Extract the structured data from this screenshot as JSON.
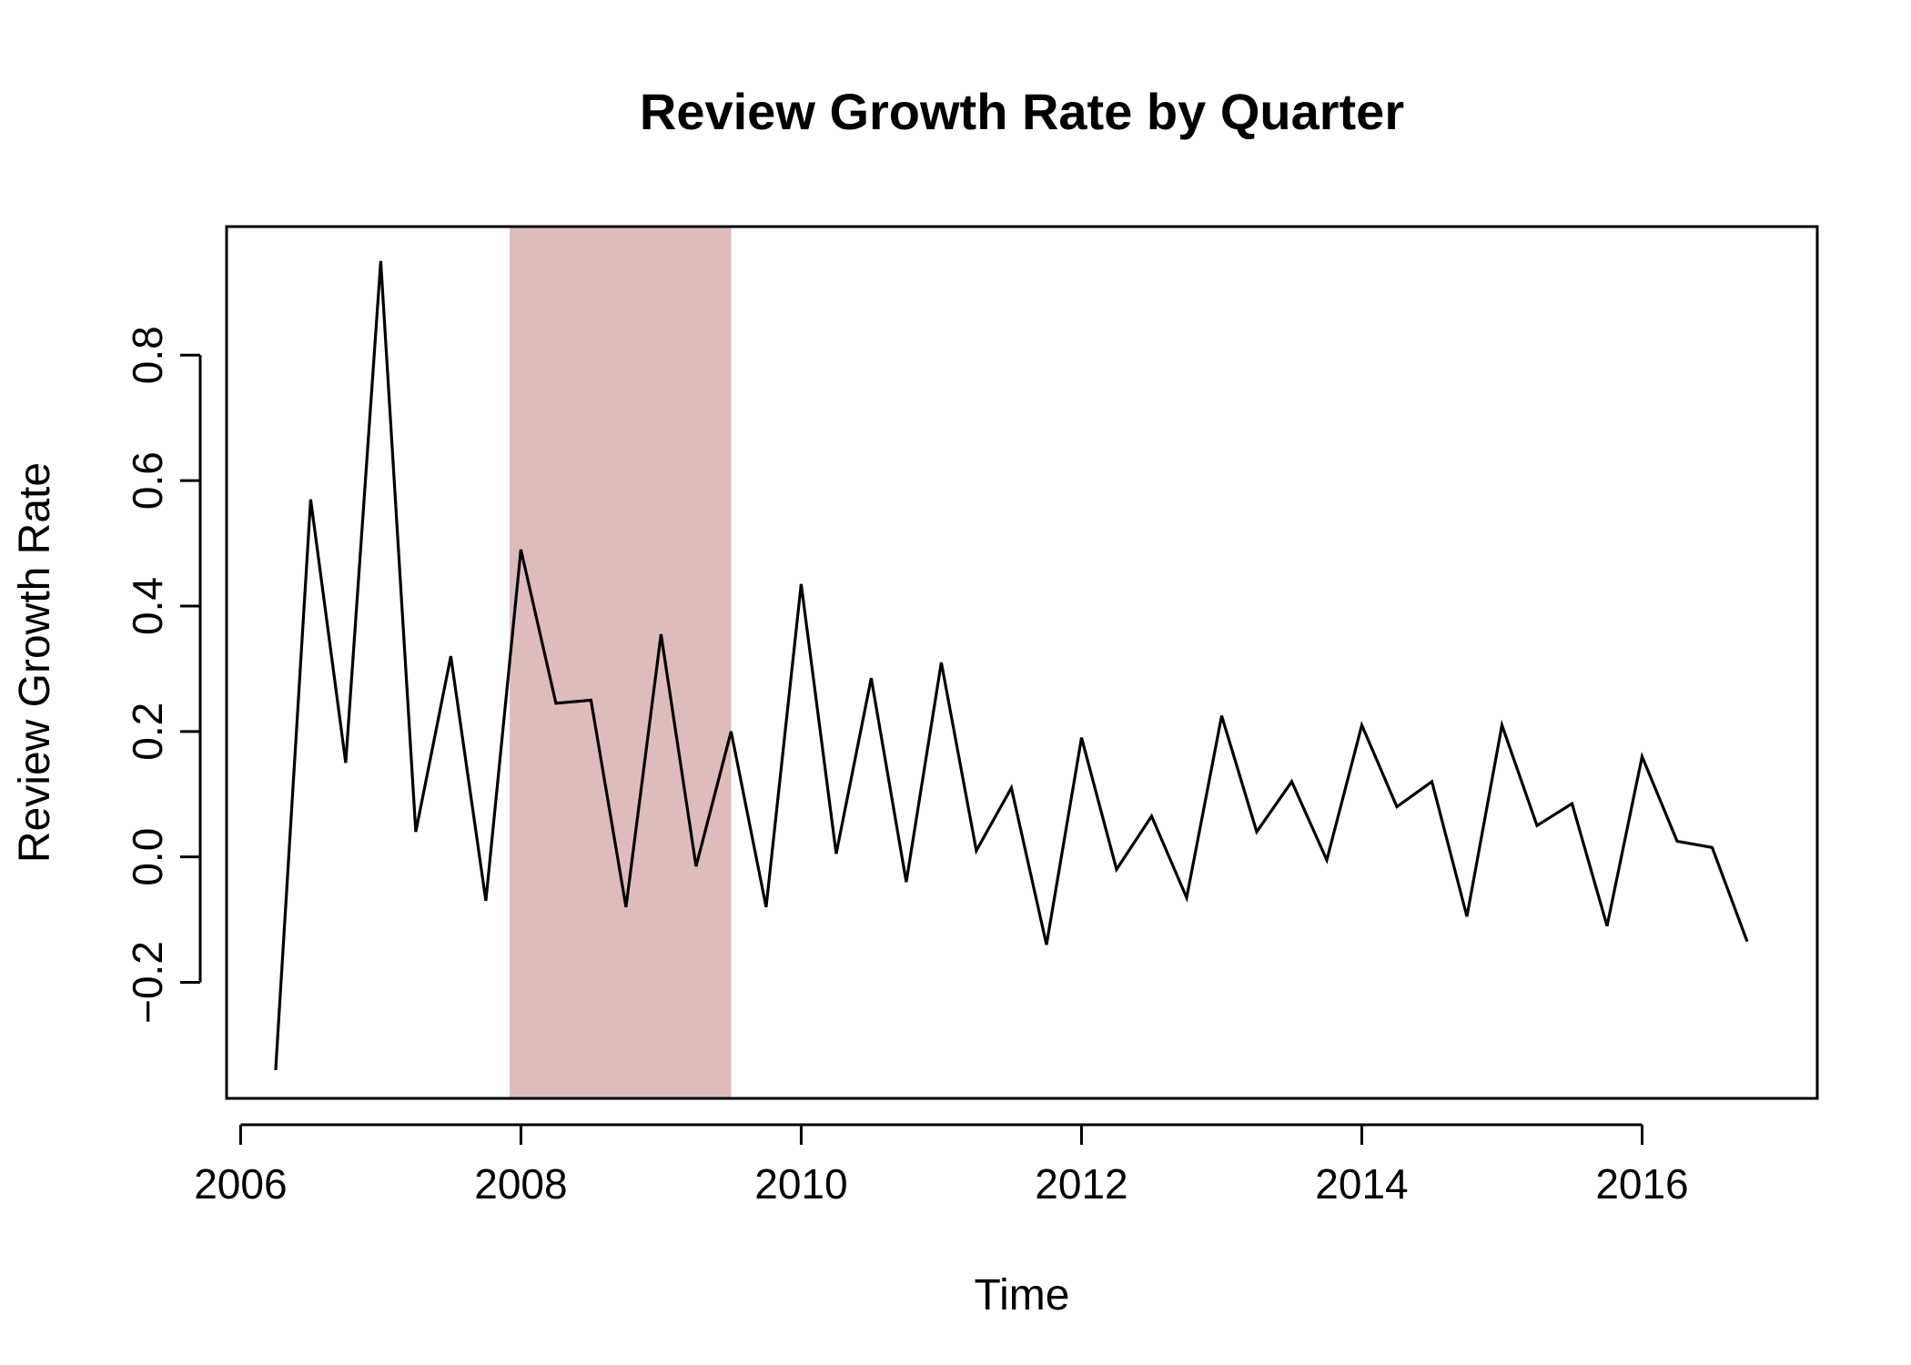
{
  "chart_data": {
    "type": "line",
    "title": "Review Growth Rate by Quarter",
    "xlabel": "Time",
    "ylabel": "Review Growth Rate",
    "xlim": [
      2005.9,
      2017.25
    ],
    "ylim": [
      -0.385,
      1.005
    ],
    "x_ticks": [
      2006,
      2008,
      2010,
      2012,
      2014,
      2016
    ],
    "x_tick_labels": [
      "2006",
      "2008",
      "2010",
      "2012",
      "2014",
      "2016"
    ],
    "y_ticks": [
      -0.2,
      0.0,
      0.2,
      0.4,
      0.6,
      0.8
    ],
    "y_tick_labels": [
      "−0.2",
      "0.0",
      "0.2",
      "0.4",
      "0.6",
      "0.8"
    ],
    "shaded_region": {
      "x_start": 2007.92,
      "x_end": 2009.5,
      "color": "#dfbcbc"
    },
    "series_color": "#000000",
    "grid": false,
    "series": [
      {
        "x": [
          2006.25,
          2006.5,
          2006.75,
          2007.0,
          2007.25,
          2007.5,
          2007.75,
          2008.0,
          2008.25,
          2008.5,
          2008.75,
          2009.0,
          2009.25,
          2009.5,
          2009.75,
          2010.0,
          2010.25,
          2010.5,
          2010.75,
          2011.0,
          2011.25,
          2011.5,
          2011.75,
          2012.0,
          2012.25,
          2012.5,
          2012.75,
          2013.0,
          2013.25,
          2013.5,
          2013.75,
          2014.0,
          2014.25,
          2014.5,
          2014.75,
          2015.0,
          2015.25,
          2015.5,
          2015.75,
          2016.0,
          2016.25,
          2016.5,
          2016.75
        ],
        "values": [
          -0.34,
          0.57,
          0.15,
          0.95,
          0.04,
          0.32,
          -0.07,
          0.49,
          0.245,
          0.25,
          -0.08,
          0.355,
          -0.015,
          0.2,
          -0.08,
          0.435,
          0.005,
          0.285,
          -0.04,
          0.31,
          0.01,
          0.11,
          -0.14,
          0.19,
          -0.02,
          0.065,
          -0.065,
          0.225,
          0.04,
          0.12,
          -0.005,
          0.21,
          0.08,
          0.12,
          -0.095,
          0.21,
          0.05,
          0.085,
          -0.11,
          0.16,
          0.025,
          0.015,
          -0.135
        ]
      }
    ]
  }
}
